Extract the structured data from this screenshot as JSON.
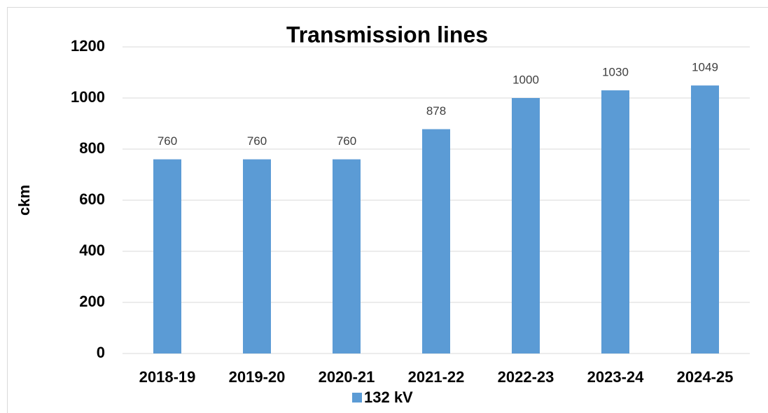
{
  "chart_data": {
    "type": "bar",
    "title": "Transmission lines",
    "y_label": "ckm",
    "categories": [
      "2018-19",
      "2019-20",
      "2020-21",
      "2021-22",
      "2022-23",
      "2023-24",
      "2024-25"
    ],
    "series": [
      {
        "name": "132 kV",
        "color": "#5b9bd5",
        "values": [
          760,
          760,
          760,
          878,
          1000,
          1030,
          1049
        ]
      }
    ],
    "ylim": [
      0,
      1200
    ],
    "yticks": [
      0,
      200,
      400,
      600,
      800,
      1000,
      1200
    ],
    "grid": true,
    "legend": "bottom"
  }
}
